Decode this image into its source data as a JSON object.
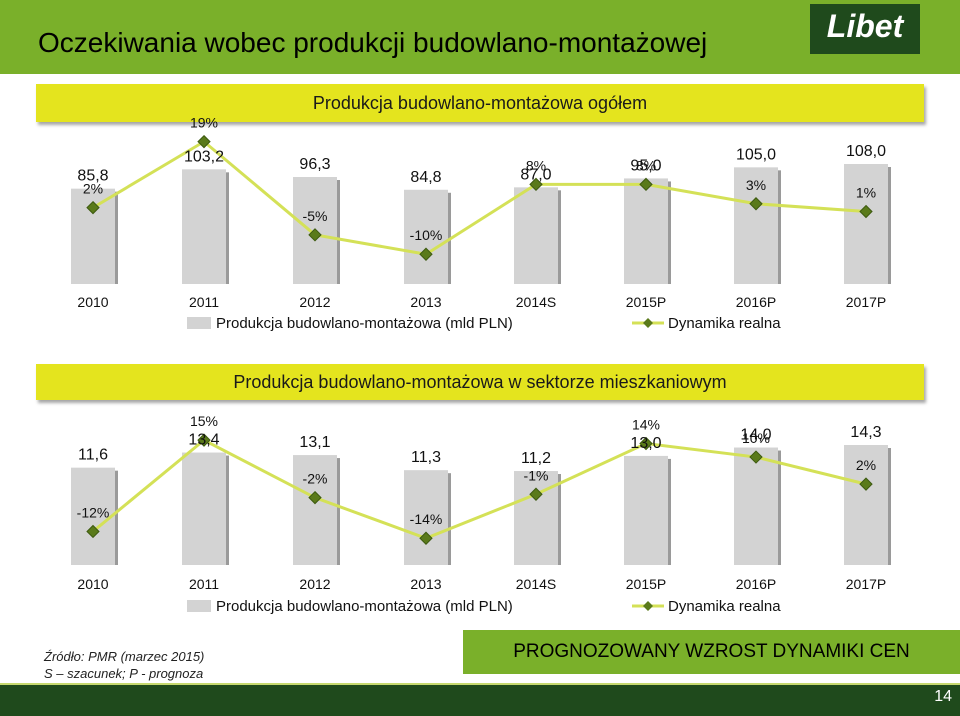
{
  "header": {
    "title": "Oczekiwania wobec produkcji budowlano-montażowej",
    "logo": "Libet"
  },
  "banners": {
    "top": "Produkcja budowlano-montażowa ogółem",
    "bottom": "Produkcja budowlano-montażowa w sektorze mieszkaniowym"
  },
  "colors": {
    "accent_green": "#7ab02a",
    "dark_green": "#1f4a1c",
    "banner_yellow": "#e4e41e",
    "bar_gray": "#d3d3d3",
    "line_yellow": "#d4e157",
    "marker_green": "#5a7a1a"
  },
  "chart_data": [
    {
      "type": "bar",
      "title": "Produkcja budowlano-montażowa ogółem",
      "categories": [
        "2010",
        "2011",
        "2012",
        "2013",
        "2014S",
        "2015P",
        "2016P",
        "2017P"
      ],
      "series": [
        {
          "name": "Produkcja budowlano-montażowa (mld PLN)",
          "type": "bar",
          "values": [
            85.8,
            103.2,
            96.3,
            84.8,
            87.0,
            95.0,
            105.0,
            108.0
          ],
          "labels": [
            "85,8",
            "103,2",
            "96,3",
            "84,8",
            "87,0",
            "95,0",
            "105,0",
            "108,0"
          ]
        },
        {
          "name": "Dynamika realna",
          "type": "line",
          "values": [
            2,
            19,
            -5,
            -10,
            8,
            8,
            3,
            1
          ],
          "labels": [
            "2%",
            "19%",
            "-5%",
            "-10%",
            "8%",
            "8%",
            "3%",
            "1%"
          ]
        }
      ],
      "legend": [
        "Produkcja budowlano-montażowa (mld PLN)",
        "Dynamika realna"
      ],
      "legend_position": "bottom"
    },
    {
      "type": "bar",
      "title": "Produkcja budowlano-montażowa w sektorze mieszkaniowym",
      "categories": [
        "2010",
        "2011",
        "2012",
        "2013",
        "2014S",
        "2015P",
        "2016P",
        "2017P"
      ],
      "series": [
        {
          "name": "Produkcja budowlano-montażowa (mld PLN)",
          "type": "bar",
          "values": [
            11.6,
            13.4,
            13.1,
            11.3,
            11.2,
            13.0,
            14.0,
            14.3
          ],
          "labels": [
            "11,6",
            "13,4",
            "13,1",
            "11,3",
            "11,2",
            "13,0",
            "14,0",
            "14,3"
          ]
        },
        {
          "name": "Dynamika realna",
          "type": "line",
          "values": [
            -12,
            15,
            -2,
            -14,
            -1,
            14,
            10,
            2
          ],
          "labels": [
            "-12%",
            "15%",
            "-2%",
            "-14%",
            "-1%",
            "14%",
            "10%",
            "2%"
          ]
        }
      ],
      "legend": [
        "Produkcja budowlano-montażowa (mld PLN)",
        "Dynamika realna"
      ],
      "legend_position": "bottom"
    }
  ],
  "source": {
    "line1": "Źródło: PMR (marzec 2015)",
    "line2": "S – szacunek; P - prognoza"
  },
  "cta": "PROGNOZOWANY WZROST DYNAMIKI CEN",
  "page_number": "14"
}
